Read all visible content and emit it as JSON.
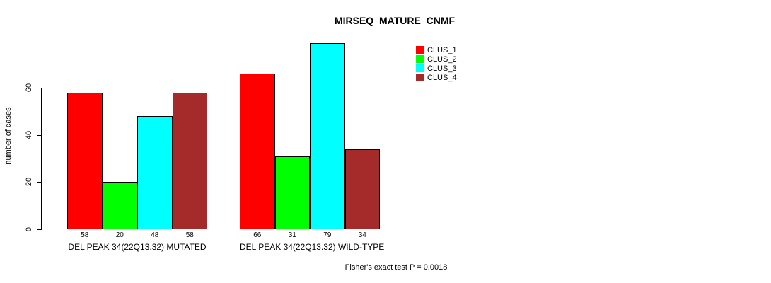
{
  "chart_data": {
    "type": "bar",
    "title": "MIRSEQ_MATURE_CNMF",
    "ylabel": "number of cases",
    "xlabel": "",
    "ylim": [
      0,
      80
    ],
    "yticks": [
      0,
      20,
      40,
      60
    ],
    "grid": false,
    "legend_position": "top-right",
    "bar_border_color": "#000000",
    "categories": [
      "DEL PEAK 34(22Q13.32) MUTATED",
      "DEL PEAK 34(22Q13.32) WILD-TYPE"
    ],
    "series": [
      {
        "name": "CLUS_1",
        "color": "#FF0000",
        "values": [
          58,
          66
        ]
      },
      {
        "name": "CLUS_2",
        "color": "#00FF00",
        "values": [
          20,
          31
        ]
      },
      {
        "name": "CLUS_3",
        "color": "#00FFFF",
        "values": [
          48,
          79
        ]
      },
      {
        "name": "CLUS_4",
        "color": "#A52A2A",
        "values": [
          58,
          34
        ]
      }
    ],
    "annotation": "Fisher's exact test P = 0.0018"
  }
}
